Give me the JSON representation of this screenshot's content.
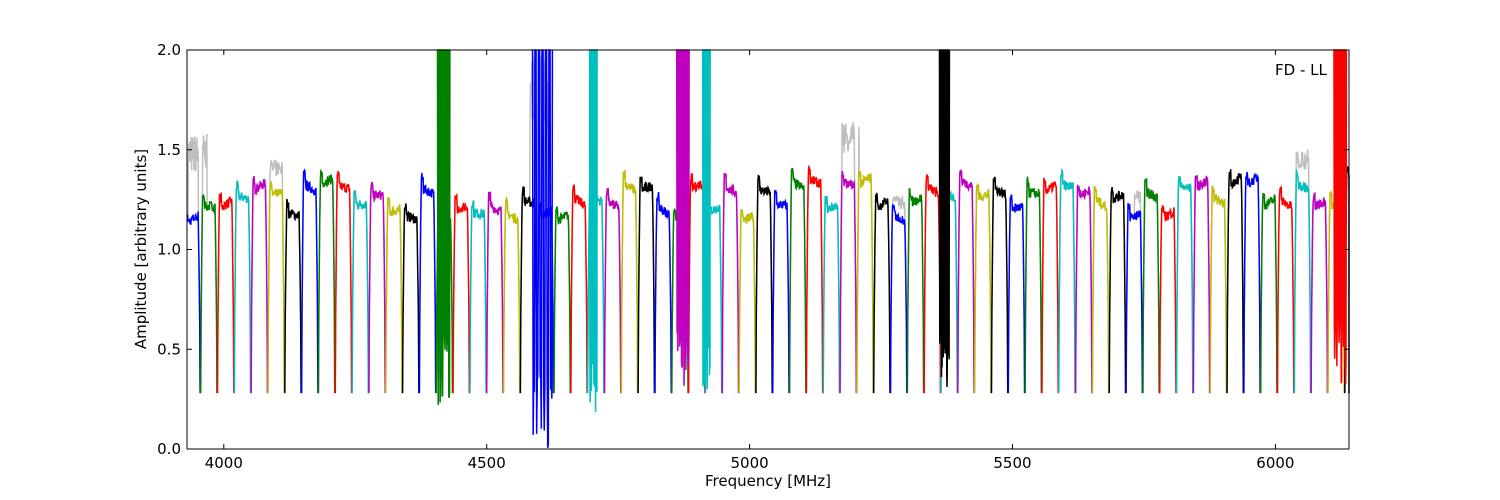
{
  "chart_data": {
    "type": "line",
    "title": "",
    "xlabel": "Frequency [MHz]",
    "ylabel": "Amplitude [arbitrary units]",
    "annotation": "FD - LL",
    "xlim": [
      3930,
      6140
    ],
    "ylim": [
      0.0,
      2.0
    ],
    "xticks": [
      4000,
      4500,
      5000,
      5500,
      6000
    ],
    "yticks": [
      0.0,
      0.5,
      1.0,
      1.5,
      2.0
    ],
    "xtick_labels": [
      "4000",
      "4500",
      "5000",
      "5500",
      "6000"
    ],
    "ytick_labels": [
      "0.0",
      "0.5",
      "1.0",
      "1.5",
      "2.0"
    ],
    "grid": false,
    "legend": "none",
    "color_cycle": [
      "#0000ff",
      "#008000",
      "#ff0000",
      "#00bfbf",
      "#bf00bf",
      "#bfbf00",
      "#000000"
    ],
    "reference_color": "#bfbfbf",
    "channel_width_mhz": 32,
    "channel_edge_min": 0.28,
    "channel_peak_range": [
      1.15,
      1.35
    ],
    "reference_excess_regions": [
      {
        "x": 3950,
        "value": 1.58
      },
      {
        "x": 4100,
        "value": 1.45
      },
      {
        "x": 4600,
        "value": 2.0
      },
      {
        "x": 5190,
        "value": 1.65
      },
      {
        "x": 5290,
        "value": 1.27
      },
      {
        "x": 5750,
        "value": 1.3
      },
      {
        "x": 6050,
        "value": 1.5
      }
    ],
    "rfi_spikes": [
      {
        "x_range": [
          4405,
          4430
        ],
        "max": 2.0,
        "min": 0.22,
        "color": "#008000"
      },
      {
        "x_range": [
          4585,
          4625
        ],
        "max": 2.0,
        "min": 0.0,
        "color": "#0000ff"
      },
      {
        "x_range": [
          4695,
          4710
        ],
        "max": 2.0,
        "min": 0.18,
        "color": "#00bfbf"
      },
      {
        "x_range": [
          4860,
          4885
        ],
        "max": 2.0,
        "min": 0.28,
        "color": "#bf00bf"
      },
      {
        "x_range": [
          4910,
          4925
        ],
        "max": 2.0,
        "min": 0.3,
        "color": "#00bfbf"
      },
      {
        "x_range": [
          5360,
          5380
        ],
        "max": 2.0,
        "min": 0.28,
        "color": "#000000"
      },
      {
        "x_range": [
          6110,
          6135
        ],
        "max": 2.0,
        "min": 0.32,
        "color": "#ff0000"
      }
    ]
  }
}
